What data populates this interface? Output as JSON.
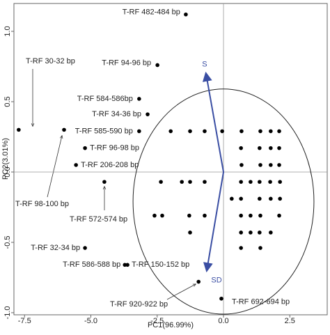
{
  "chart_data": {
    "type": "scatter",
    "xlabel": "PC1(96.99%)",
    "ylabel": "PC2(3.01%)",
    "xlim": [
      -7.9,
      3.91
    ],
    "ylim": [
      -1.015,
      1.198
    ],
    "xticks": [
      -7.5,
      {
        "value": -5.0,
        "label": "-5.0"
      },
      -2.5,
      {
        "value": 0.0,
        "label": "0.0"
      },
      2.5
    ],
    "yticks": [
      {
        "value": 1.0,
        "label": "1.0"
      },
      0.5,
      {
        "value": 0.0,
        "label": "0.0"
      },
      -0.5,
      {
        "value": -1.0,
        "label": "-1.0"
      }
    ],
    "color": "#000000",
    "x": [
      -1.42,
      -2.49,
      -7.72,
      -3.18,
      -2.86,
      -3.18,
      -6.01,
      -5.22,
      -5.56,
      -4.49,
      -5.22,
      -3.72,
      -3.62,
      -0.94,
      -0.08,
      -1.99,
      -1.26,
      -0.71,
      -0.05,
      0.68,
      1.39,
      1.78,
      2.1,
      0.66,
      1.36,
      1.78,
      2.1,
      0.68,
      1.39,
      1.78,
      2.1,
      -2.36,
      -1.57,
      -1.26,
      -0.71,
      0.66,
      1.02,
      1.36,
      1.76,
      2.13,
      0.31,
      0.66,
      1.36,
      1.78,
      2.13,
      -2.6,
      -2.31,
      -1.29,
      -0.71,
      0.66,
      1.02,
      1.39,
      2.1,
      -1.26,
      0.66,
      1.02,
      1.36,
      1.78,
      0.66,
      1.39
    ],
    "values": [
      1.12,
      0.76,
      0.3,
      0.52,
      0.41,
      0.29,
      0.3,
      0.17,
      0.05,
      -0.07,
      -0.54,
      -0.66,
      -0.66,
      -0.78,
      -0.9,
      0.29,
      0.29,
      0.29,
      0.29,
      0.29,
      0.29,
      0.29,
      0.29,
      0.17,
      0.17,
      0.17,
      0.17,
      0.05,
      0.05,
      0.05,
      0.05,
      -0.07,
      -0.07,
      -0.07,
      -0.07,
      -0.07,
      -0.07,
      -0.07,
      -0.07,
      -0.07,
      -0.19,
      -0.19,
      -0.19,
      -0.19,
      -0.19,
      -0.31,
      -0.31,
      -0.31,
      -0.31,
      -0.31,
      -0.31,
      -0.31,
      -0.31,
      -0.43,
      -0.43,
      -0.43,
      -0.43,
      -0.43,
      -0.54,
      -0.54
    ],
    "point_labels": [
      "T-RF 482-484 bp",
      "T-RF 94-96 bp",
      "T-RF 30-32 bp",
      "T-RF 584-586bp",
      "T-RF 34-36 bp",
      "T-RF 585-590 bp",
      "T-RF 98-100 bp",
      "T-RF 96-98 bp",
      "T-RF 206-208 bp",
      "T-RF 572-574 bp",
      "T-RF 32-34 bp",
      "T-RF 586-588 bp",
      "T-RF 150-152 bp",
      "T-RF 920-922 bp",
      "T-RF 692-694 bp",
      null,
      null,
      null,
      null,
      null,
      null,
      null,
      null,
      null,
      null,
      null,
      null,
      null,
      null,
      null,
      null,
      null,
      null,
      null,
      null,
      null,
      null,
      null,
      null,
      null,
      null,
      null,
      null,
      null,
      null,
      null,
      null,
      null,
      null,
      null,
      null,
      null,
      null,
      null,
      null,
      null,
      null,
      null,
      null,
      null
    ],
    "vectors": [
      {
        "label": "S",
        "x": -0.66,
        "y": 0.7,
        "color": "#3a4ea3"
      },
      {
        "label": "SD",
        "x": -0.63,
        "y": -0.7,
        "color": "#3a4ea3"
      }
    ],
    "circle": {
      "cx": 0.0,
      "cy": -0.21,
      "rx": 3.41,
      "ry": 0.8
    }
  }
}
